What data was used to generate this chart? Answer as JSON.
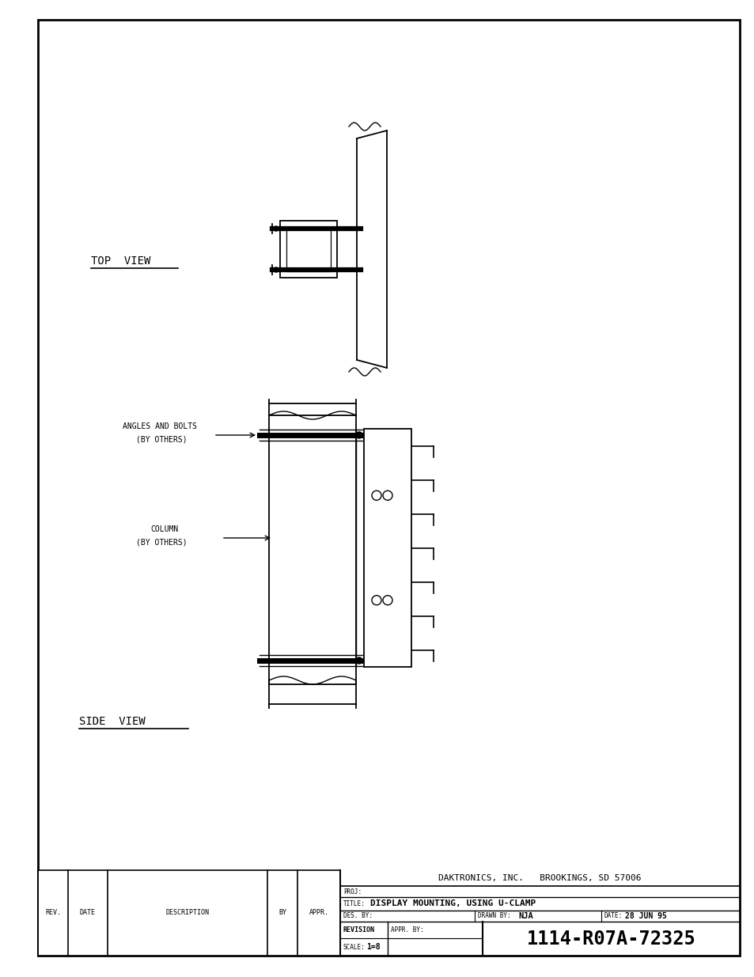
{
  "bg_color": "#ffffff",
  "line_color": "#000000",
  "title_block": {
    "company": "DAKTRONICS, INC.   BROOKINGS, SD 57006",
    "proj_label": "PROJ:",
    "title_label": "TITLE:",
    "title_value": "DISPLAY MOUNTING, USING U-CLAMP",
    "des_label": "DES. BY:",
    "drawn_label": "DRAWN BY:",
    "drawn_value": "NJA",
    "date_label": "DATE:",
    "date_value": "28 JUN 95",
    "revision_label": "REVISION",
    "appr_label": "APPR. BY:",
    "scale_label": "SCALE:",
    "scale_value": "1=8",
    "doc_number": "1114-R07A-72325"
  },
  "bottom_strip": {
    "rev_label": "REV.",
    "date_label": "DATE",
    "desc_label": "DESCRIPTION",
    "by_label": "BY",
    "appr_label": "APPR."
  },
  "top_view_label": "TOP  VIEW",
  "side_view_label": "SIDE  VIEW",
  "angles_label1": "ANGLES AND BOLTS",
  "angles_label2": "(BY OTHERS)",
  "column_label1": "COLUMN",
  "column_label2": "(BY OTHERS)"
}
